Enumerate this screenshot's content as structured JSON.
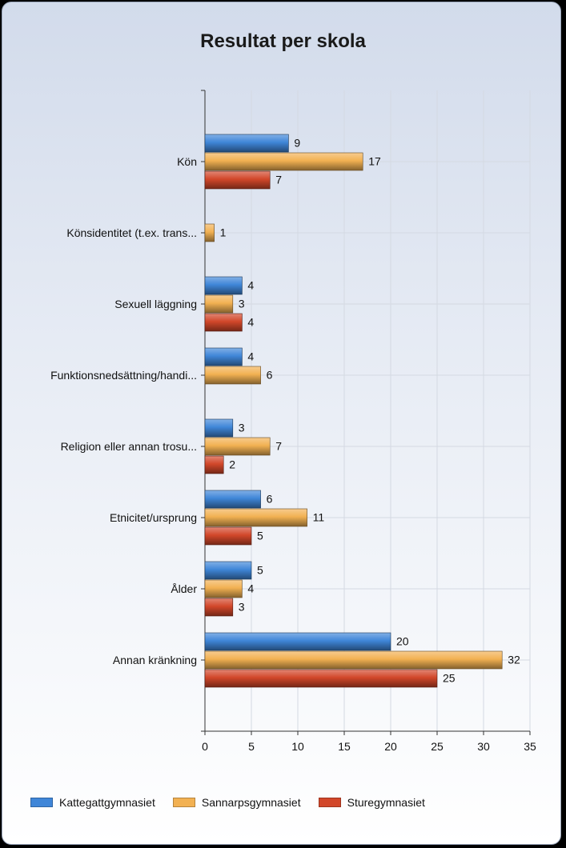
{
  "chart_data": {
    "type": "bar",
    "orientation": "horizontal",
    "title": "Resultat per skola",
    "xlabel": "",
    "ylabel": "",
    "xlim": [
      0,
      35
    ],
    "x_ticks": [
      0,
      5,
      10,
      15,
      20,
      25,
      30,
      35
    ],
    "grid": true,
    "legend_position": "bottom",
    "categories": [
      "Kön",
      "Könsidentitet (t.ex. trans...",
      "Sexuell läggning",
      "Funktionsnedsättning/handi...",
      "Religion eller annan trosu...",
      "Etnicitet/ursprung",
      "Ålder",
      "Annan kränkning"
    ],
    "series": [
      {
        "name": "Kattegattgymnasiet",
        "color": "#3f86d8",
        "values": [
          9,
          null,
          4,
          4,
          3,
          6,
          5,
          20
        ]
      },
      {
        "name": "Sannarpsgymnasiet",
        "color": "#f2b152",
        "values": [
          17,
          1,
          3,
          6,
          7,
          11,
          4,
          32
        ]
      },
      {
        "name": "Sturegymnasiet",
        "color": "#d2472a",
        "values": [
          7,
          null,
          4,
          null,
          2,
          5,
          3,
          25
        ]
      }
    ]
  }
}
